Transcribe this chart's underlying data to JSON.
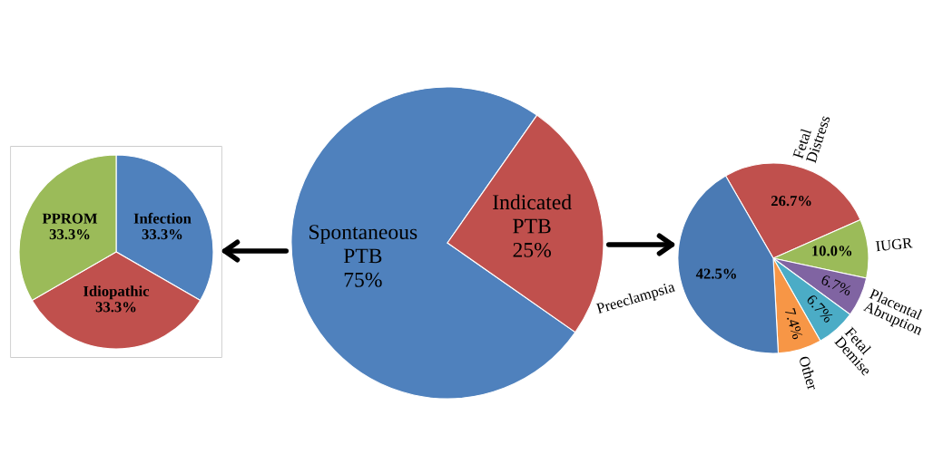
{
  "chart_data": [
    {
      "type": "pie",
      "categories": [
        "Infection",
        "Idiopathic",
        "PPROM"
      ],
      "values": [
        33.3,
        33.3,
        33.3
      ],
      "colors": [
        "#4f81bd",
        "#c0504d",
        "#9bbb59"
      ],
      "value_labels": [
        "33.3%",
        "33.3%",
        "33.3%"
      ]
    },
    {
      "type": "pie",
      "categories": [
        "Spontaneous\nPTB",
        "Indicated\nPTB"
      ],
      "values": [
        75,
        25
      ],
      "colors": [
        "#4f81bd",
        "#c0504d"
      ],
      "value_labels": [
        "75%",
        "25%"
      ]
    },
    {
      "type": "pie",
      "categories": [
        "Fetal\nDistress",
        "IUGR",
        "Placental\nAbruption",
        "Fetal\nDemise",
        "Other",
        "Preeclampsia"
      ],
      "values": [
        26.7,
        10.0,
        6.7,
        6.7,
        7.4,
        42.5
      ],
      "colors": [
        "#c0504d",
        "#9bbb59",
        "#8064a2",
        "#4bacc6",
        "#f79646",
        "#4a7ab4"
      ],
      "value_labels": [
        "26.7%",
        "10.0%",
        "6.7%",
        "6.7%",
        "7.4%",
        "42.5%"
      ]
    }
  ]
}
